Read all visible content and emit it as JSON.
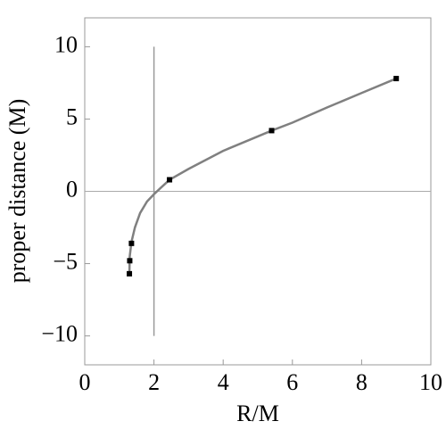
{
  "chart_data": {
    "type": "line",
    "x_label": "R/M",
    "y_label": "proper distance (M)",
    "xlim": [
      0,
      10
    ],
    "ylim": [
      -12,
      12
    ],
    "xticks": [
      0,
      2,
      4,
      6,
      8,
      10
    ],
    "yticks": [
      {
        "value": -10,
        "label": "−10"
      },
      {
        "value": -5,
        "label": "−5"
      },
      0,
      5,
      10
    ],
    "curve": {
      "color": "#808080",
      "x": [
        1.29,
        1.3,
        1.35,
        1.45,
        1.6,
        1.8,
        2.0,
        2.2,
        2.45,
        3,
        4,
        5,
        5.4,
        6,
        7,
        8,
        9
      ],
      "y": [
        -5.7,
        -4.5,
        -3.5,
        -2.5,
        -1.5,
        -0.7,
        -0.2,
        0.25,
        0.8,
        1.55,
        2.8,
        3.8,
        4.2,
        4.75,
        5.8,
        6.8,
        7.8
      ]
    },
    "points": {
      "color": "#000000",
      "x": [
        1.29,
        1.3,
        1.35,
        2.45,
        5.4,
        9
      ],
      "y": [
        -5.7,
        -4.8,
        -3.6,
        0.8,
        4.2,
        7.8
      ]
    },
    "vertical_line": {
      "x": 2,
      "y": [
        -10,
        10
      ],
      "color": "#999999"
    },
    "horizontal_line": {
      "y": 0,
      "color": "#aaaaaa"
    }
  }
}
